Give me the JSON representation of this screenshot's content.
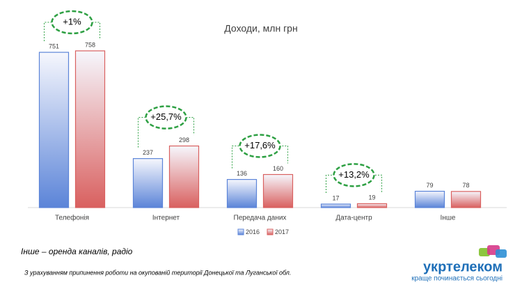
{
  "chart_data": {
    "type": "bar",
    "title": "Доходи, млн грн",
    "categories": [
      "Телефонія",
      "Інтернет",
      "Передача даних",
      "Дата-центр",
      "Інше"
    ],
    "series": [
      {
        "name": "2016",
        "color": "#5b84d8",
        "values": [
          751,
          237,
          136,
          17,
          79
        ]
      },
      {
        "name": "2017",
        "color": "#d9605f",
        "values": [
          758,
          298,
          160,
          19,
          78
        ]
      }
    ],
    "annotations": [
      "+1%",
      "+25,7%",
      "+17,6%",
      "+13,2%",
      null
    ]
  },
  "footnotes": [
    "Інше – оренда каналів, радіо",
    "З урахуванням припинення роботи на окупованій території Донецької та Луганської обл."
  ],
  "logo": {
    "name": "укртелеком",
    "slogan": "краще починається сьогодні"
  }
}
